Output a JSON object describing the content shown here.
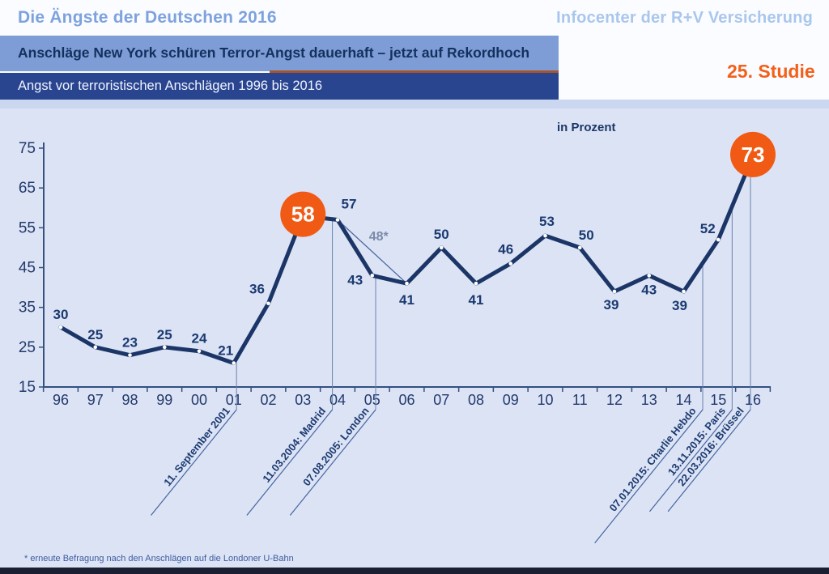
{
  "header": {
    "title": "Die Ängste der Deutschen 2016",
    "brand": "Infocenter der R+V Versicherung",
    "banner1": "Anschläge New York schüren Terror-Angst dauerhaft – jetzt auf Rekordhoch",
    "banner2": "Angst vor terroristischen Anschlägen 1996 bis 2016",
    "study_badge": "25. Studie"
  },
  "footnote": "* erneute Befragung nach den Anschlägen auf die Londoner U-Bahn",
  "colors": {
    "accent_orange": "#F05A14",
    "study_badge_orange": "#F2601A",
    "series_navy": "#1B3566",
    "banner_light_blue": "#7E9CD6",
    "banner_dark_blue": "#2A4590",
    "rust_underline": "#A9542B",
    "chart_background": "#DCE3F5",
    "title_blue": "#7DA2DE",
    "brand_blue": "#A9C6EC"
  },
  "chart_data": {
    "type": "line",
    "title": "Angst vor terroristischen Anschlägen 1996 bis 2016",
    "unit_label": "in Prozent",
    "categories": [
      "96",
      "97",
      "98",
      "99",
      "00",
      "01",
      "02",
      "03",
      "04",
      "05",
      "06",
      "07",
      "08",
      "09",
      "10",
      "11",
      "12",
      "13",
      "14",
      "15",
      "16"
    ],
    "values": [
      30,
      25,
      23,
      25,
      24,
      21,
      36,
      58,
      57,
      43,
      41,
      50,
      41,
      46,
      53,
      50,
      39,
      43,
      39,
      52,
      73
    ],
    "ylim": [
      15,
      75
    ],
    "yticks": [
      15,
      25,
      35,
      45,
      55,
      65,
      75
    ],
    "grid": false,
    "legend": false,
    "highlight_indices": [
      7,
      20
    ],
    "resurvey": {
      "label": "48*",
      "value": 48,
      "from_index": 8,
      "to_index": 10
    },
    "annotations": [
      {
        "label": "11. September 2001",
        "x_index": 5.08,
        "from_value": 21,
        "len": 168
      },
      {
        "label": "11.03.2004: Madrid",
        "x_index": 7.85,
        "from_value": 57,
        "len": 168
      },
      {
        "label": "07.08.2005: London",
        "x_index": 9.1,
        "from_value": 43,
        "len": 168
      },
      {
        "label": "07.01.2015: Charlie Hebdo",
        "x_index": 18.55,
        "from_value": 46,
        "len": 212
      },
      {
        "label": "13.11.2015: Paris",
        "x_index": 19.4,
        "from_value": 60,
        "len": 162
      },
      {
        "label": "22.03.2016: Brüssel",
        "x_index": 19.93,
        "from_value": 72,
        "len": 162
      }
    ]
  }
}
